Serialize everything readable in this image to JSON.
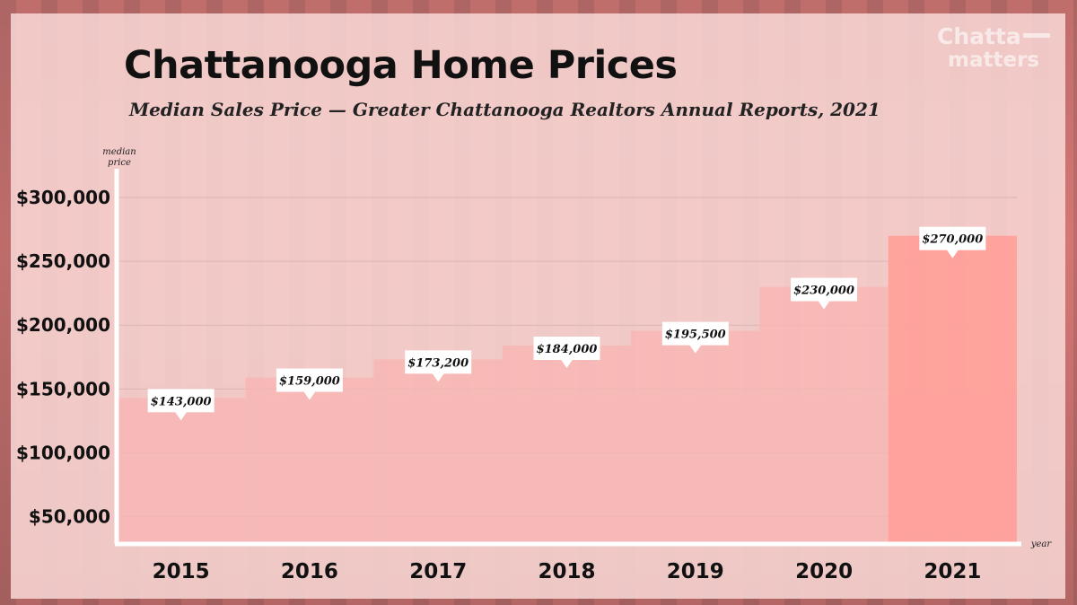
{
  "brand": {
    "line1": "Chatta",
    "line2": "matters"
  },
  "colors": {
    "background": "#e47d7a",
    "panel": "#f7d6d4",
    "bar_light": "#f8b6b3",
    "bar_dark": "#ffa09b",
    "axis": "#ffffff",
    "label_box": "#ffffff",
    "text": "#111111"
  },
  "chart_data": {
    "type": "bar",
    "title": "Chattanooga Home Prices",
    "subtitle": "Median Sales Price — Greater Chattanooga Realtors Annual Reports, 2021",
    "ylabel_line1": "median",
    "ylabel_line2": "price",
    "xlabel": "year",
    "categories": [
      "2015",
      "2016",
      "2017",
      "2018",
      "2019",
      "2020",
      "2021"
    ],
    "values": [
      143000,
      159000,
      173200,
      184000,
      195500,
      230000,
      270000
    ],
    "data_labels": [
      "$143,000",
      "$159,000",
      "$173,200",
      "$184,000",
      "$195,500",
      "$230,000",
      "$270,000"
    ],
    "ylim": [
      30000,
      300000
    ],
    "yticks": [
      50000,
      100000,
      150000,
      200000,
      250000,
      300000
    ],
    "ytick_labels": [
      "$50,000",
      "$100,000",
      "$150,000",
      "$200,000",
      "$250,000",
      "$300,000"
    ],
    "grid": true,
    "legend": "none"
  }
}
